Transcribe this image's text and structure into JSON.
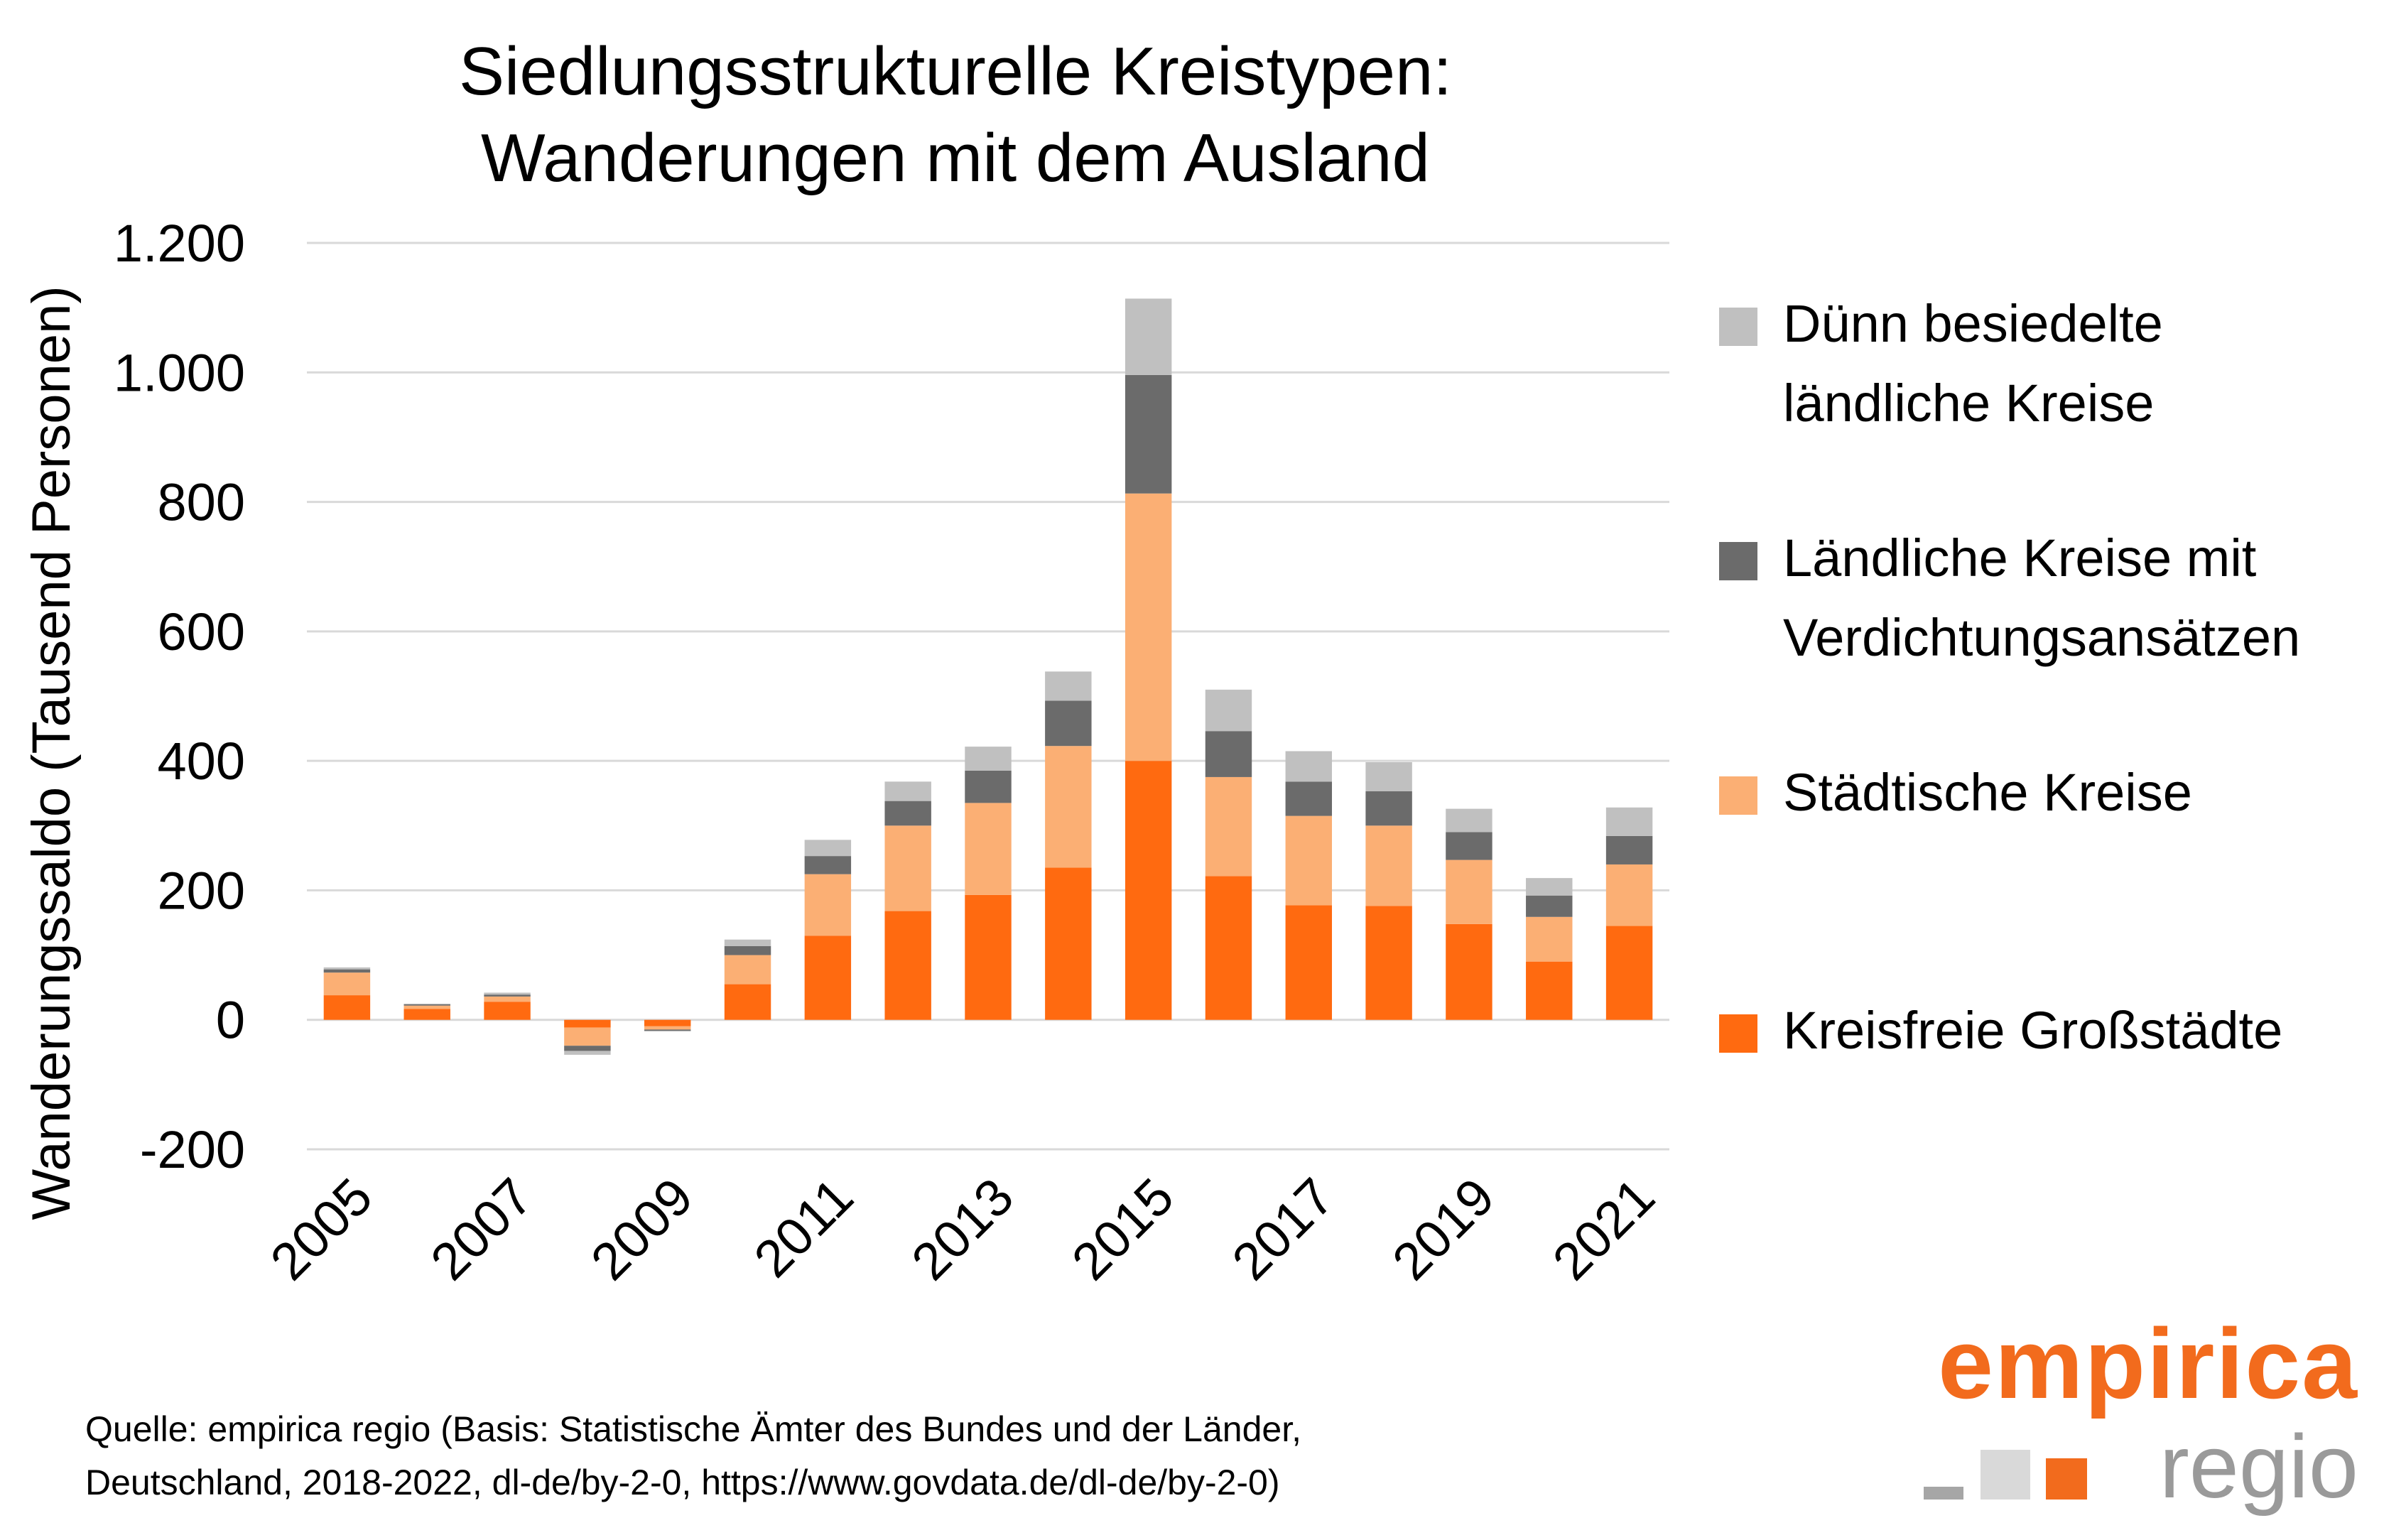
{
  "chart_data": {
    "type": "bar",
    "stacked": true,
    "title": [
      "Siedlungsstrukturelle Kreistypen:",
      "Wanderungen mit dem Ausland"
    ],
    "ylabel": "Wanderungssaldo (Tausend Personen)",
    "xlabel": "",
    "ylim": [
      -200,
      1200
    ],
    "yticks": [
      -200,
      0,
      200,
      400,
      600,
      800,
      1000,
      1200
    ],
    "ytick_labels": [
      "-200",
      "0",
      "200",
      "400",
      "600",
      "800",
      "1.000",
      "1.200"
    ],
    "categories": [
      "2005",
      "2006",
      "2007",
      "2008",
      "2009",
      "2010",
      "2011",
      "2012",
      "2013",
      "2014",
      "2015",
      "2016",
      "2017",
      "2018",
      "2019",
      "2020",
      "2021"
    ],
    "xtick_labels": [
      "2005",
      "2007",
      "2009",
      "2011",
      "2013",
      "2015",
      "2017",
      "2019",
      "2021"
    ],
    "grid": true,
    "legend_position": "right",
    "series": [
      {
        "name": "Kreisfreie Großstädte",
        "color": "#ff6a10",
        "values": [
          38,
          17,
          28,
          -12,
          -10,
          55,
          130,
          168,
          193,
          235,
          400,
          222,
          177,
          176,
          148,
          90,
          145
        ]
      },
      {
        "name": "Städtische Kreise",
        "color": "#fbaf74",
        "values": [
          35,
          5,
          8,
          -28,
          -5,
          45,
          95,
          132,
          142,
          188,
          413,
          153,
          138,
          124,
          99,
          69,
          95
        ]
      },
      {
        "name": "Ländliche Kreise mit Verdichtungsansätzen",
        "color": "#6b6b6b",
        "values": [
          5,
          2,
          3,
          -8,
          -2,
          14,
          28,
          38,
          50,
          70,
          183,
          71,
          53,
          53,
          43,
          33,
          44
        ]
      },
      {
        "name": "Dünn besiedelte ländliche Kreise",
        "color": "#c0c0c0",
        "values": [
          3,
          1,
          3,
          -6,
          -1,
          10,
          25,
          30,
          37,
          45,
          118,
          64,
          47,
          45,
          36,
          27,
          44
        ]
      }
    ]
  },
  "legend": [
    {
      "label_lines": [
        "Dünn besiedelte",
        "ländliche Kreise"
      ],
      "color": "#c0c0c0"
    },
    {
      "label_lines": [
        "Ländliche Kreise mit",
        "Verdichtungsansätzen"
      ],
      "color": "#6b6b6b"
    },
    {
      "label_lines": [
        "Städtische Kreise"
      ],
      "color": "#fbaf74"
    },
    {
      "label_lines": [
        "Kreisfreie Großstädte"
      ],
      "color": "#ff6a10"
    }
  ],
  "source": {
    "line1": "Quelle: empirica regio (Basis: Statistische Ämter des Bundes und der Länder,",
    "line2": "Deutschland, 2018-2022, dl-de/by-2-0, https://www.govdata.de/dl-de/by-2-0)"
  },
  "logo": {
    "word1": "empirica",
    "word2": "regio",
    "colors": {
      "orange": "#f26b1d",
      "gray": "#9a9a9a",
      "light": "#d9d9d9"
    }
  }
}
